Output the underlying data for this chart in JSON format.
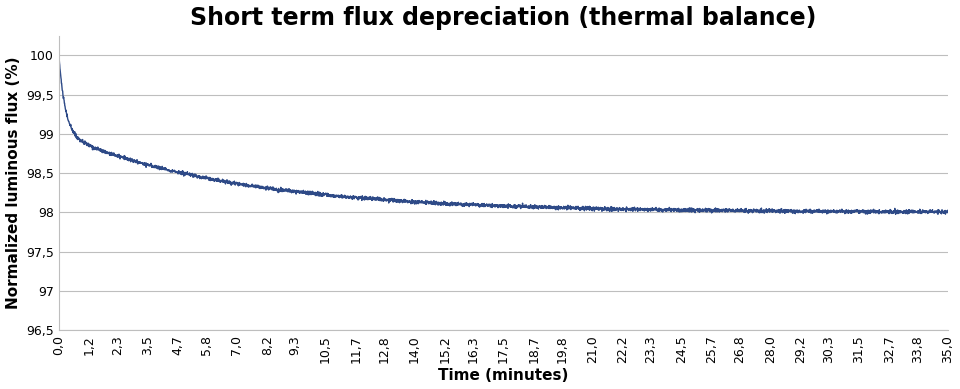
{
  "title": "Short term flux depreciation (thermal balance)",
  "xlabel": "Time (minutes)",
  "ylabel": "Normalized luminous flux (%)",
  "ylim": [
    96.5,
    100.25
  ],
  "yticks": [
    96.5,
    97.0,
    97.5,
    98.0,
    98.5,
    99.0,
    99.5,
    100.0
  ],
  "ytick_labels": [
    "96,5",
    "97",
    "97,5",
    "98",
    "98,5",
    "99",
    "99,5",
    "100"
  ],
  "xtick_positions": [
    0.0,
    1.2,
    2.3,
    3.5,
    4.7,
    5.8,
    7.0,
    8.2,
    9.3,
    10.5,
    11.7,
    12.8,
    14.0,
    15.2,
    16.3,
    17.5,
    18.7,
    19.8,
    21.0,
    22.2,
    23.3,
    24.5,
    25.7,
    26.8,
    28.0,
    29.2,
    30.3,
    31.5,
    32.7,
    33.8,
    35.0
  ],
  "xtick_labels": [
    "0,0",
    "1,2",
    "2,3",
    "3,5",
    "4,7",
    "5,8",
    "7,0",
    "8,2",
    "9,3",
    "10,5",
    "11,7",
    "12,8",
    "14,0",
    "15,2",
    "16,3",
    "17,5",
    "18,7",
    "19,8",
    "21,0",
    "22,2",
    "23,3",
    "24,5",
    "25,7",
    "26,8",
    "28,0",
    "29,2",
    "30,3",
    "31,5",
    "32,7",
    "33,8",
    "35,0"
  ],
  "line_color": "#2E4A87",
  "line_width": 1.0,
  "background_color": "#ffffff",
  "grid_color": "#BEBEBE",
  "title_fontsize": 17,
  "axis_label_fontsize": 11,
  "tick_fontsize": 9,
  "noise_amplitude": 0.012,
  "baseline": 98.0,
  "fast_tau": 0.25,
  "slow_tau": 7.0,
  "fast_amp": 1.0,
  "slow_amp": 1.0
}
